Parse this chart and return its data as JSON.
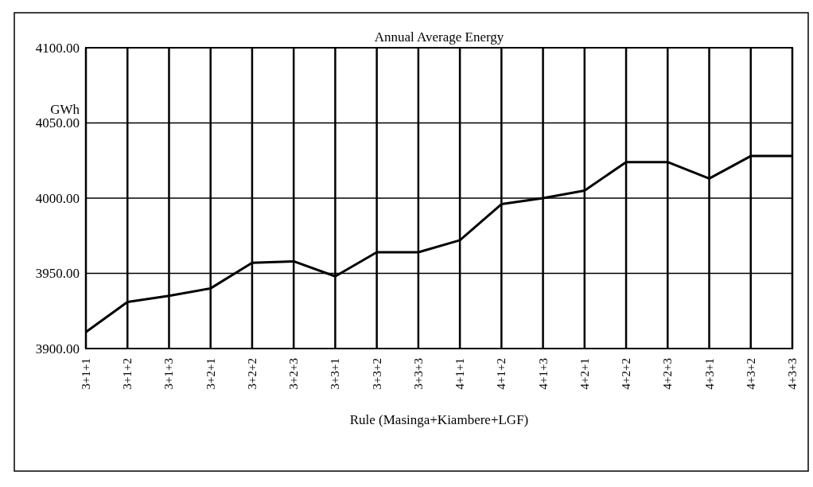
{
  "chart_data": {
    "type": "line",
    "title": "Annual Average Energy",
    "ylabel": "GWh",
    "xlabel": "Rule (Masinga+Kiambere+LGF)",
    "categories": [
      "3+1+1",
      "3+1+2",
      "3+1+3",
      "3+2+1",
      "3+2+2",
      "3+2+3",
      "3+3+1",
      "3+3+2",
      "3+3+3",
      "4+1+1",
      "4+1+2",
      "4+1+3",
      "4+2+1",
      "4+2+2",
      "4+2+3",
      "4+3+1",
      "4+3+2",
      "4+3+3"
    ],
    "series": [
      {
        "color": "#000000",
        "values": [
          3911,
          3931,
          3935,
          3940,
          3957,
          3958,
          3948,
          3964,
          3964,
          3972,
          3996,
          4000,
          4005,
          4024,
          4024,
          4013,
          4028,
          4028
        ]
      }
    ],
    "ylim": [
      3900,
      4100
    ],
    "yticks": [
      {
        "value": 3900,
        "label": "3900.00"
      },
      {
        "value": 3950,
        "label": "3950.00"
      },
      {
        "value": 4000,
        "label": "4000.00"
      },
      {
        "value": 4050,
        "label": "4050.00"
      },
      {
        "value": 4100,
        "label": "4100.00"
      }
    ],
    "grid": true,
    "marker": "none",
    "line_style": "solid"
  }
}
